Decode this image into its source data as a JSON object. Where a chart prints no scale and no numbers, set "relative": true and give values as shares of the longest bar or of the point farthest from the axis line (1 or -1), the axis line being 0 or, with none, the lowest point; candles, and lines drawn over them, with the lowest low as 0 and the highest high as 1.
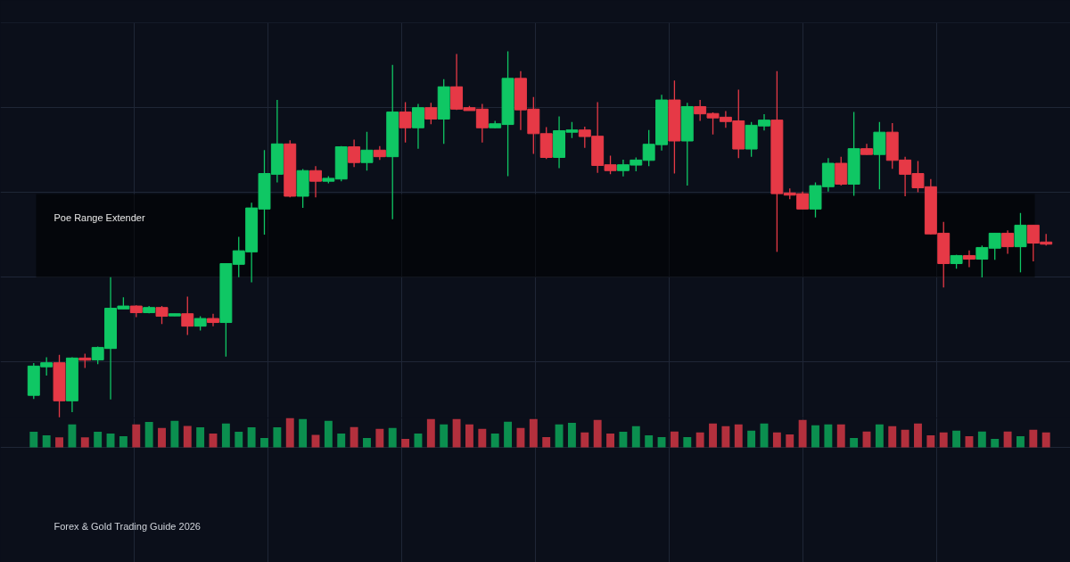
{
  "chart_data": [
    {
      "type": "candlestick",
      "relative": true,
      "grid": true,
      "categories": [
        null,
        null,
        null,
        null,
        null,
        null,
        null,
        null,
        null,
        null,
        null,
        null,
        null,
        null,
        null,
        null,
        null,
        null,
        null,
        null,
        null,
        null,
        null,
        null,
        null,
        null,
        null,
        null,
        null,
        null,
        null,
        null,
        null,
        null,
        null,
        null,
        null,
        null,
        null,
        null,
        null,
        null,
        null,
        null,
        null,
        null,
        null,
        null,
        null,
        null,
        null,
        null,
        null,
        null,
        null,
        null,
        null,
        null,
        null,
        null,
        null,
        null,
        null,
        null,
        null,
        null,
        null,
        null,
        null,
        null,
        null,
        null,
        null,
        null,
        null,
        null,
        null,
        null,
        null,
        null
      ],
      "bands": [
        {
          "axis": "y",
          "from": 0.383,
          "to": 0.61,
          "label": "Poe Range Extender",
          "color": "#000000"
        }
      ],
      "ohlc": [
        [
          0.06,
          0.148,
          0.05,
          0.14
        ],
        [
          0.138,
          0.164,
          0.114,
          0.149
        ],
        [
          0.149,
          0.171,
          0,
          0.045
        ],
        [
          0.045,
          0.164,
          0.014,
          0.162
        ],
        [
          0.162,
          0.174,
          0.135,
          0.156
        ],
        [
          0.157,
          0.193,
          0.145,
          0.191
        ],
        [
          0.188,
          0.383,
          0.049,
          0.298
        ],
        [
          0.296,
          0.328,
          0.296,
          0.304
        ],
        [
          0.304,
          0.306,
          0.274,
          0.286
        ],
        [
          0.286,
          0.304,
          0.284,
          0.3
        ],
        [
          0.3,
          0.304,
          0.255,
          0.276
        ],
        [
          0.277,
          0.283,
          0.277,
          0.283
        ],
        [
          0.283,
          0.33,
          0.225,
          0.249
        ],
        [
          0.249,
          0.276,
          0.237,
          0.27
        ],
        [
          0.27,
          0.283,
          0.249,
          0.259
        ],
        [
          0.259,
          0.42,
          0.166,
          0.42
        ],
        [
          0.418,
          0.493,
          0.383,
          0.455
        ],
        [
          0.452,
          0.586,
          0.369,
          0.572
        ],
        [
          0.569,
          0.73,
          0.499,
          0.666
        ],
        [
          0.664,
          0.867,
          0.642,
          0.747
        ],
        [
          0.747,
          0.757,
          0.601,
          0.604
        ],
        [
          0.604,
          0.678,
          0.572,
          0.674
        ],
        [
          0.674,
          0.686,
          0.601,
          0.645
        ],
        [
          0.645,
          0.659,
          0.639,
          0.653
        ],
        [
          0.651,
          0.741,
          0.645,
          0.739
        ],
        [
          0.739,
          0.759,
          0.684,
          0.696
        ],
        [
          0.696,
          0.78,
          0.674,
          0.73
        ],
        [
          0.73,
          0.741,
          0.703,
          0.712
        ],
        [
          0.712,
          0.963,
          0.541,
          0.834
        ],
        [
          0.834,
          0.861,
          0.751,
          0.791
        ],
        [
          0.791,
          0.856,
          0.734,
          0.846
        ],
        [
          0.846,
          0.859,
          0.801,
          0.815
        ],
        [
          0.815,
          0.924,
          0.747,
          0.903
        ],
        [
          0.903,
          0.993,
          0.84,
          0.842
        ],
        [
          0.846,
          0.851,
          0.838,
          0.838
        ],
        [
          0.842,
          0.856,
          0.751,
          0.791
        ],
        [
          0.791,
          0.81,
          0.79,
          0.802
        ],
        [
          0.8,
          1,
          0.659,
          0.926
        ],
        [
          0.926,
          0.946,
          0.785,
          0.84
        ],
        [
          0.842,
          0.875,
          0.72,
          0.775
        ],
        [
          0.775,
          0.793,
          0.706,
          0.71
        ],
        [
          0.71,
          0.822,
          0.681,
          0.783
        ],
        [
          0.779,
          0.807,
          0.763,
          0.785
        ],
        [
          0.785,
          0.794,
          0.736,
          0.767
        ],
        [
          0.768,
          0.861,
          0.668,
          0.688
        ],
        [
          0.69,
          0.715,
          0.664,
          0.674
        ],
        [
          0.674,
          0.704,
          0.658,
          0.69
        ],
        [
          0.689,
          0.71,
          0.672,
          0.703
        ],
        [
          0.702,
          0.785,
          0.686,
          0.746
        ],
        [
          0.745,
          0.881,
          0.729,
          0.867
        ],
        [
          0.867,
          0.92,
          0.666,
          0.755
        ],
        [
          0.755,
          0.859,
          0.633,
          0.849
        ],
        [
          0.849,
          0.867,
          0.81,
          0.829
        ],
        [
          0.83,
          0.833,
          0.773,
          0.818
        ],
        [
          0.82,
          0.837,
          0.791,
          0.808
        ],
        [
          0.81,
          0.895,
          0.708,
          0.733
        ],
        [
          0.733,
          0.807,
          0.712,
          0.798
        ],
        [
          0.796,
          0.828,
          0.784,
          0.812
        ],
        [
          0.812,
          0.946,
          0.452,
          0.611
        ],
        [
          0.613,
          0.625,
          0.596,
          0.607
        ],
        [
          0.611,
          0.617,
          0.569,
          0.569
        ],
        [
          0.569,
          0.642,
          0.546,
          0.633
        ],
        [
          0.63,
          0.708,
          0.617,
          0.694
        ],
        [
          0.694,
          0.712,
          0.633,
          0.637
        ],
        [
          0.637,
          0.834,
          0.605,
          0.734
        ],
        [
          0.734,
          0.747,
          0.717,
          0.718
        ],
        [
          0.718,
          0.807,
          0.623,
          0.779
        ],
        [
          0.779,
          0.804,
          0.679,
          0.702
        ],
        [
          0.703,
          0.712,
          0.604,
          0.664
        ],
        [
          0.666,
          0.7,
          0.615,
          0.627
        ],
        [
          0.63,
          0.651,
          0.5,
          0.501
        ],
        [
          0.503,
          0.534,
          0.355,
          0.42
        ],
        [
          0.42,
          0.444,
          0.406,
          0.442
        ],
        [
          0.442,
          0.456,
          0.41,
          0.432
        ],
        [
          0.432,
          0.469,
          0.382,
          0.464
        ],
        [
          0.462,
          0.503,
          0.43,
          0.503
        ],
        [
          0.503,
          0.511,
          0.447,
          0.466
        ],
        [
          0.466,
          0.558,
          0.396,
          0.525
        ],
        [
          0.525,
          0.525,
          0.426,
          0.476
        ],
        [
          0.479,
          0.501,
          0.469,
          0.473
        ]
      ],
      "colors": [
        "#0fc764",
        "#0fc764",
        "#e63946",
        "#0fc764",
        "#e63946",
        "#0fc764",
        "#0fc764",
        "#0fc764",
        "#e63946",
        "#0fc764",
        "#e63946",
        "#0fc764",
        "#e63946",
        "#0fc764",
        "#e63946",
        "#0fc764",
        "#0fc764",
        "#0fc764",
        "#0fc764",
        "#0fc764",
        "#e63946",
        "#0fc764",
        "#e63946",
        "#0fc764",
        "#0fc764",
        "#e63946",
        "#0fc764",
        "#e63946",
        "#0fc764",
        "#e63946",
        "#0fc764",
        "#e63946",
        "#0fc764",
        "#e63946",
        "#e63946",
        "#e63946",
        "#0fc764",
        "#0fc764",
        "#e63946",
        "#e63946",
        "#e63946",
        "#0fc764",
        "#0fc764",
        "#e63946",
        "#e63946",
        "#e63946",
        "#0fc764",
        "#0fc764",
        "#0fc764",
        "#0fc764",
        "#e63946",
        "#0fc764",
        "#e63946",
        "#e63946",
        "#e63946",
        "#e63946",
        "#0fc764",
        "#0fc764",
        "#e63946",
        "#e63946",
        "#e63946",
        "#0fc764",
        "#0fc764",
        "#e63946",
        "#0fc764",
        "#e63946",
        "#0fc764",
        "#e63946",
        "#e63946",
        "#e63946",
        "#e63946",
        "#e63946",
        "#0fc764",
        "#e63946",
        "#0fc764",
        "#0fc764",
        "#e63946",
        "#0fc764",
        "#e63946",
        "#e63946"
      ]
    },
    {
      "type": "bar",
      "relative": true,
      "grid": true,
      "categories": [
        null,
        null,
        null,
        null,
        null,
        null,
        null,
        null,
        null,
        null,
        null,
        null,
        null,
        null,
        null,
        null,
        null,
        null,
        null,
        null,
        null,
        null,
        null,
        null,
        null,
        null,
        null,
        null,
        null,
        null,
        null,
        null,
        null,
        null,
        null,
        null,
        null,
        null,
        null,
        null,
        null,
        null,
        null,
        null,
        null,
        null,
        null,
        null,
        null,
        null,
        null,
        null,
        null,
        null,
        null,
        null,
        null,
        null,
        null,
        null,
        null,
        null,
        null,
        null,
        null,
        null,
        null,
        null,
        null,
        null,
        null,
        null,
        null,
        null,
        null,
        null,
        null,
        null,
        null,
        null
      ],
      "annotations": [
        "Forex & Gold Trading Guide 2026"
      ],
      "values": [
        0.53,
        0.41,
        0.34,
        0.78,
        0.34,
        0.53,
        0.47,
        0.38,
        0.78,
        0.86,
        0.66,
        0.9,
        0.73,
        0.68,
        0.47,
        0.81,
        0.53,
        0.68,
        0.32,
        0.68,
        1,
        0.96,
        0.42,
        0.9,
        0.47,
        0.69,
        0.32,
        0.63,
        0.66,
        0.29,
        0.47,
        0.96,
        0.78,
        0.96,
        0.78,
        0.63,
        0.47,
        0.87,
        0.66,
        0.96,
        0.35,
        0.78,
        0.83,
        0.51,
        0.93,
        0.47,
        0.53,
        0.72,
        0.41,
        0.35,
        0.54,
        0.35,
        0.51,
        0.81,
        0.72,
        0.78,
        0.57,
        0.81,
        0.51,
        0.44,
        0.93,
        0.75,
        0.78,
        0.78,
        0.32,
        0.54,
        0.78,
        0.72,
        0.6,
        0.81,
        0.41,
        0.51,
        0.57,
        0.38,
        0.54,
        0.29,
        0.54,
        0.38,
        0.6,
        0.51
      ],
      "colors": [
        "#0b8f4f",
        "#0b8f4f",
        "#b3303d",
        "#0b8f4f",
        "#b3303d",
        "#0b8f4f",
        "#0b8f4f",
        "#0b8f4f",
        "#b3303d",
        "#0b8f4f",
        "#b3303d",
        "#0b8f4f",
        "#b3303d",
        "#0b8f4f",
        "#b3303d",
        "#0b8f4f",
        "#0b8f4f",
        "#0b8f4f",
        "#0b8f4f",
        "#0b8f4f",
        "#b3303d",
        "#0b8f4f",
        "#b3303d",
        "#0b8f4f",
        "#0b8f4f",
        "#b3303d",
        "#0b8f4f",
        "#b3303d",
        "#0b8f4f",
        "#b3303d",
        "#0b8f4f",
        "#b3303d",
        "#0b8f4f",
        "#b3303d",
        "#b3303d",
        "#b3303d",
        "#0b8f4f",
        "#0b8f4f",
        "#b3303d",
        "#b3303d",
        "#b3303d",
        "#0b8f4f",
        "#0b8f4f",
        "#b3303d",
        "#b3303d",
        "#b3303d",
        "#0b8f4f",
        "#0b8f4f",
        "#0b8f4f",
        "#0b8f4f",
        "#b3303d",
        "#0b8f4f",
        "#b3303d",
        "#b3303d",
        "#b3303d",
        "#b3303d",
        "#0b8f4f",
        "#0b8f4f",
        "#b3303d",
        "#b3303d",
        "#b3303d",
        "#0b8f4f",
        "#0b8f4f",
        "#b3303d",
        "#0b8f4f",
        "#b3303d",
        "#0b8f4f",
        "#b3303d",
        "#b3303d",
        "#b3303d",
        "#b3303d",
        "#b3303d",
        "#0b8f4f",
        "#b3303d",
        "#0b8f4f",
        "#0b8f4f",
        "#b3303d",
        "#0b8f4f",
        "#b3303d",
        "#b3303d"
      ]
    }
  ]
}
